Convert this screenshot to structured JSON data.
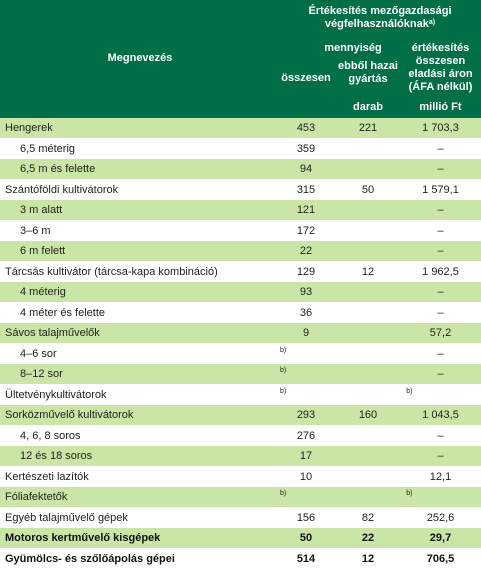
{
  "header": {
    "name_col": "Megnevezés",
    "sales_line1": "Értékesítés mezőgazdasági",
    "sales_line2": "végfelhasználóknak",
    "sales_note": "a)",
    "quantity": "mennyiség",
    "total": "összesen",
    "domestic_line1": "ebből hazai",
    "domestic_line2": "gyártás",
    "value_line1": "értékesítés",
    "value_line2": "összesen",
    "value_line3": "eladási áron",
    "value_line4": "(ÁFA nélkül)",
    "unit_pieces": "darab",
    "unit_million": "millió Ft"
  },
  "rows": [
    {
      "name": "Hengerek",
      "total": "453",
      "domestic": "221",
      "value": "1 703,3",
      "shaded": true
    },
    {
      "name": "6,5 méterig",
      "total": "359",
      "domestic": "",
      "value": "–",
      "indent": true
    },
    {
      "name": "6,5 m és felette",
      "total": "94",
      "domestic": "",
      "value": "–",
      "indent": true,
      "shaded": true
    },
    {
      "name": "Szántóföldi kultivátorok",
      "total": "315",
      "domestic": "50",
      "value": "1 579,1"
    },
    {
      "name": "3 m alatt",
      "total": "121",
      "domestic": "",
      "value": "–",
      "indent": true,
      "shaded": true
    },
    {
      "name": "3–6 m",
      "total": "172",
      "domestic": "",
      "value": "–",
      "indent": true
    },
    {
      "name": "6 m felett",
      "total": "22",
      "domestic": "",
      "value": "–",
      "indent": true,
      "shaded": true
    },
    {
      "name": "Tárcsás kultivátor (tárcsa-kapa kombináció)",
      "total": "129",
      "domestic": "12",
      "value": "1 962,5"
    },
    {
      "name": "4 méterig",
      "total": "93",
      "domestic": "",
      "value": "–",
      "indent": true,
      "shaded": true
    },
    {
      "name": "4 méter és felette",
      "total": "36",
      "domestic": "",
      "value": "–",
      "indent": true
    },
    {
      "name": "Sávos talajművelők",
      "total": "9",
      "domestic": "",
      "value": "57,2",
      "shaded": true
    },
    {
      "name": "4–6 sor",
      "total": "b)",
      "domestic": "",
      "value": "–",
      "indent": true
    },
    {
      "name": "8–12 sor",
      "total": "b)",
      "domestic": "",
      "value": "–",
      "indent": true,
      "shaded": true
    },
    {
      "name": "Ültetvénykultivátorok",
      "total": "b)",
      "domestic": "",
      "value": "b)"
    },
    {
      "name": "Sorközművelő kultivátorok",
      "total": "293",
      "domestic": "160",
      "value": "1 043,5",
      "shaded": true
    },
    {
      "name": "4, 6, 8 soros",
      "total": "276",
      "domestic": "",
      "value": "–",
      "indent": true
    },
    {
      "name": "12 és 18 soros",
      "total": "17",
      "domestic": "",
      "value": "–",
      "indent": true,
      "shaded": true
    },
    {
      "name": "Kertészeti lazítók",
      "total": "10",
      "domestic": "",
      "value": "12,1"
    },
    {
      "name": "Fóliafektetők",
      "total": "b)",
      "domestic": "",
      "value": "b)",
      "shaded": true
    },
    {
      "name": "Egyéb talajművelő gépek",
      "total": "156",
      "domestic": "82",
      "value": "252,6"
    },
    {
      "name": "Motoros kertművelő kisgépek",
      "total": "50",
      "domestic": "22",
      "value": "29,7",
      "bold": true,
      "shaded": true
    },
    {
      "name": "Gyümölcs- és szőlőápolás gépei",
      "total": "514",
      "domestic": "12",
      "value": "706,5",
      "bold": true
    }
  ],
  "colors": {
    "header_bg": "#006f47",
    "row_shade": "#c9e6a6"
  }
}
